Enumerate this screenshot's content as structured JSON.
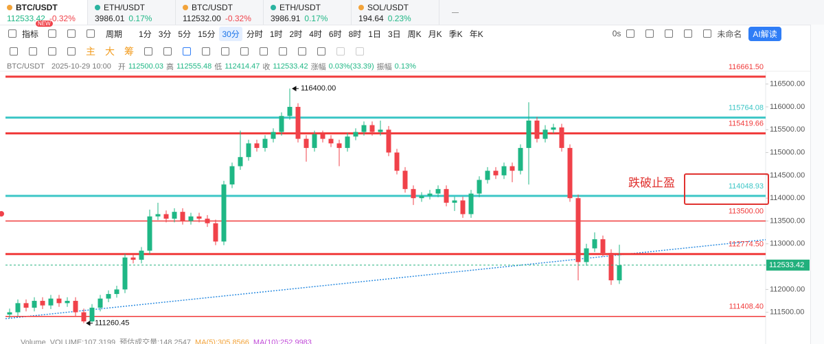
{
  "tabs": [
    {
      "pair": "BTC/USDT",
      "price": "112533.42",
      "change": "-0.32%"
    },
    {
      "pair": "ETH/USDT",
      "price": "3986.01",
      "change": "0.17%"
    },
    {
      "pair": "BTC/USDT",
      "price": "112532.00",
      "change": "-0.32%"
    },
    {
      "pair": "ETH/USDT",
      "price": "3986.91",
      "change": "0.17%"
    },
    {
      "pair": "SOL/USDT",
      "price": "194.64",
      "change": "0.23%"
    }
  ],
  "active_tab": 0,
  "new_badge": "NEW",
  "toolbar": {
    "indicator": "指标",
    "period": "周期",
    "intervals": [
      "1分",
      "3分",
      "5分",
      "15分",
      "30分",
      "分时",
      "1时",
      "2时",
      "4时",
      "6时",
      "8时",
      "1日",
      "3日",
      "周K",
      "月K",
      "季K",
      "年K"
    ],
    "selected_interval": 4,
    "countdown": "0s",
    "layout_name": "未命名",
    "ai_button": "AI解读"
  },
  "draw_tools": [
    "主",
    "大",
    "筹"
  ],
  "info": {
    "pair": "BTC/USDT",
    "time": "2025-10-29 10:00",
    "fields": [
      {
        "label": "开",
        "value": "112500.03"
      },
      {
        "label": "高",
        "value": "112555.48"
      },
      {
        "label": "低",
        "value": "112414.47"
      },
      {
        "label": "收",
        "value": "112533.42"
      },
      {
        "label": "涨幅",
        "value": "0.03%(33.39)"
      },
      {
        "label": "振幅",
        "value": "0.13%"
      }
    ]
  },
  "chart_data": {
    "type": "candlestick",
    "up_color": "#1fb785",
    "down_color": "#f0424a",
    "ylim": [
      111000,
      116780
    ],
    "yticks": [
      {
        "value": 116500,
        "label": "116500.00"
      },
      {
        "value": 116000,
        "label": "116000.00"
      },
      {
        "value": 115500,
        "label": "115500.00"
      },
      {
        "value": 115000,
        "label": "115000.00"
      },
      {
        "value": 114500,
        "label": "114500.00"
      },
      {
        "value": 114000,
        "label": "114000.00"
      },
      {
        "value": 113500,
        "label": "113500.00"
      },
      {
        "value": 113000,
        "label": "113000.00"
      },
      {
        "value": 112000,
        "label": "112000.00"
      },
      {
        "value": 111500,
        "label": "111500.00"
      }
    ],
    "ohlc": [
      [
        111450,
        111580,
        111370,
        111500
      ],
      [
        111500,
        111780,
        111420,
        111700
      ],
      [
        111700,
        111780,
        111520,
        111600
      ],
      [
        111600,
        111830,
        111520,
        111750
      ],
      [
        111750,
        111830,
        111570,
        111650
      ],
      [
        111650,
        111880,
        111570,
        111800
      ],
      [
        111800,
        111880,
        111620,
        111700
      ],
      [
        111700,
        111830,
        111620,
        111750
      ],
      [
        111750,
        111830,
        111420,
        111500
      ],
      [
        111500,
        111580,
        111260.45,
        111300
      ],
      [
        111300,
        111680,
        111280,
        111600
      ],
      [
        111600,
        111880,
        111520,
        111800
      ],
      [
        111800,
        111980,
        111720,
        111900
      ],
      [
        111900,
        112080,
        111820,
        112000
      ],
      [
        112000,
        112780,
        111920,
        112700
      ],
      [
        112700,
        112780,
        112570,
        112650
      ],
      [
        112650,
        112930,
        112570,
        112850
      ],
      [
        112850,
        113750,
        112770,
        113600
      ],
      [
        113600,
        113900,
        113520,
        113650
      ],
      [
        113650,
        113730,
        113470,
        113550
      ],
      [
        113550,
        113780,
        113470,
        113700
      ],
      [
        113700,
        113780,
        113420,
        113500
      ],
      [
        113500,
        113680,
        113420,
        113600
      ],
      [
        113600,
        113680,
        113470,
        113550
      ],
      [
        113550,
        113630,
        113370,
        113450
      ],
      [
        113450,
        113530,
        112970,
        113050
      ],
      [
        113050,
        114380,
        112970,
        114300
      ],
      [
        114300,
        114780,
        114220,
        114700
      ],
      [
        114700,
        115480,
        114620,
        114900
      ],
      [
        114900,
        115280,
        114820,
        115200
      ],
      [
        115200,
        115280,
        115020,
        115100
      ],
      [
        115100,
        115380,
        115020,
        115300
      ],
      [
        115300,
        115530,
        115220,
        115450
      ],
      [
        115450,
        115880,
        115370,
        115800
      ],
      [
        115800,
        116400,
        115720,
        116000
      ],
      [
        116000,
        116080,
        115220,
        115300
      ],
      [
        115300,
        115380,
        114800,
        115100
      ],
      [
        115100,
        115480,
        115020,
        115400
      ],
      [
        115400,
        115480,
        115220,
        115300
      ],
      [
        115300,
        115380,
        115120,
        115200
      ],
      [
        115200,
        115280,
        114700,
        115100
      ],
      [
        115100,
        115430,
        115020,
        115350
      ],
      [
        115350,
        115530,
        115270,
        115450
      ],
      [
        115450,
        115680,
        115370,
        115600
      ],
      [
        115600,
        115680,
        115370,
        115450
      ],
      [
        115450,
        115700,
        115370,
        115500
      ],
      [
        115500,
        115580,
        114920,
        115000
      ],
      [
        115000,
        115080,
        114520,
        114600
      ],
      [
        114600,
        114680,
        114120,
        114200
      ],
      [
        114200,
        114280,
        113850,
        114000
      ],
      [
        114000,
        114130,
        113920,
        114050
      ],
      [
        114050,
        114180,
        113970,
        114100
      ],
      [
        114100,
        114280,
        114020,
        114200
      ],
      [
        114200,
        114280,
        113820,
        113900
      ],
      [
        113900,
        114030,
        113720,
        113950
      ],
      [
        113950,
        114030,
        113570,
        113650
      ],
      [
        113650,
        114180,
        113570,
        114100
      ],
      [
        114100,
        114480,
        114020,
        114400
      ],
      [
        114400,
        114680,
        114320,
        114600
      ],
      [
        114600,
        114680,
        114420,
        114500
      ],
      [
        114500,
        114780,
        114420,
        114700
      ],
      [
        114700,
        114780,
        114350,
        114600
      ],
      [
        114600,
        115180,
        114520,
        115100
      ],
      [
        115100,
        116100,
        114300,
        115700
      ],
      [
        115700,
        115780,
        115220,
        115300
      ],
      [
        115300,
        115600,
        115220,
        115500
      ],
      [
        115500,
        115630,
        115420,
        115550
      ],
      [
        115550,
        115630,
        115020,
        115100
      ],
      [
        115100,
        115180,
        113920,
        114000
      ],
      [
        114000,
        114080,
        112200,
        112600
      ],
      [
        112600,
        113000,
        112520,
        112900
      ],
      [
        112900,
        113250,
        112820,
        113100
      ],
      [
        113100,
        113180,
        112720,
        112800
      ],
      [
        112800,
        112880,
        112100,
        112200
      ],
      [
        112200,
        112980,
        112120,
        112530
      ]
    ],
    "levels": [
      {
        "value": 116661.5,
        "label": "116661.50",
        "color": "#f03a3a",
        "style": "thick"
      },
      {
        "value": 115764.08,
        "label": "115764.08",
        "color": "#3cc6c6",
        "style": "thick"
      },
      {
        "value": 115419.66,
        "label": "115419.66",
        "color": "#f03a3a",
        "style": "thick"
      },
      {
        "value": 114048.93,
        "label": "114048.93",
        "color": "#3cc6c6",
        "style": "thick"
      },
      {
        "value": 113500,
        "label": "113500.00",
        "color": "#f03a3a",
        "style": "thin"
      },
      {
        "value": 112774.5,
        "label": "112774.50",
        "color": "#f03a3a",
        "style": "thick"
      },
      {
        "value": 111408.4,
        "label": "111408.40",
        "color": "#f03a3a",
        "style": "thin"
      }
    ],
    "current_price": {
      "value": 112533.42,
      "label": "112533.42",
      "color": "#22b07d"
    },
    "high_label": {
      "value": 116400,
      "label": "116400.00"
    },
    "low_label": {
      "value": 111260.45,
      "label": "111260.45"
    },
    "trendline": [
      111360,
      113090
    ],
    "note": "跌破止盈"
  },
  "volume_legend": [
    "Volume",
    "VOLUME:107.3199",
    "预估成交量:148.2547",
    "MA(5):305.8566",
    "MA(10):252.9983"
  ]
}
